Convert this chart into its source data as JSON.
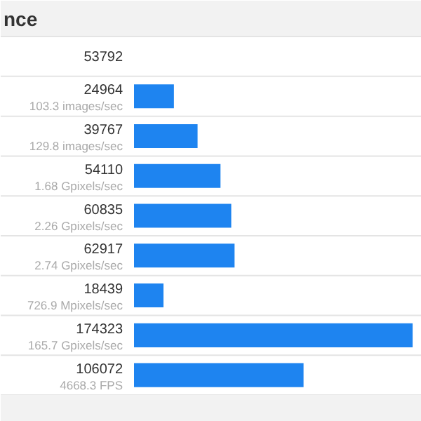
{
  "chart_data": {
    "type": "bar",
    "orientation": "horizontal",
    "title": "nce",
    "annotations": [
      "53792"
    ],
    "categories": [
      "103.3 images/sec",
      "129.8 images/sec",
      "1.68 Gpixels/sec",
      "2.26 Gpixels/sec",
      "2.74 Gpixels/sec",
      "726.9 Mpixels/sec",
      "165.7 Gpixels/sec",
      "4668.3 FPS"
    ],
    "values": [
      24964,
      39767,
      54110,
      60835,
      62917,
      18439,
      174323,
      106072
    ],
    "data_labels": true,
    "color": "#1e84f0",
    "xlim": [
      0,
      180000
    ],
    "tick_labels": false,
    "grid": false
  }
}
